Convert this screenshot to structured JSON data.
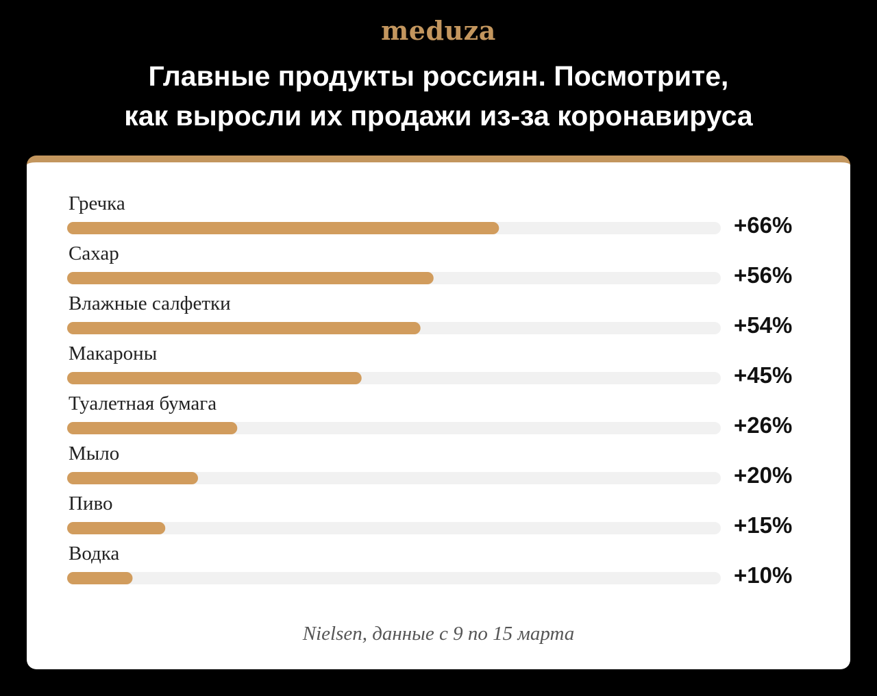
{
  "logo": {
    "text": "meduza",
    "color": "#c3965e"
  },
  "chart_data": {
    "type": "bar",
    "orientation": "horizontal",
    "title": "Главные продукты россиян. Посмотрите, как выросли их продажи из-за коронавируса",
    "title_lines": [
      "Главные продукты россиян. Посмотрите,",
      "как выросли их продажи из-за коронавируса"
    ],
    "categories": [
      "Гречка",
      "Сахар",
      "Влажные салфетки",
      "Макароны",
      "Туалетная бумага",
      "Мыло",
      "Пиво",
      "Водка"
    ],
    "values": [
      66,
      56,
      54,
      45,
      26,
      20,
      15,
      10
    ],
    "value_labels": [
      "+66%",
      "+56%",
      "+54%",
      "+45%",
      "+26%",
      "+20%",
      "+15%",
      "+10%"
    ],
    "unit": "%",
    "xlim": [
      0,
      100
    ],
    "grid": false,
    "legend": "none",
    "source": "Nielsen, данные с 9 по 15 марта",
    "colors": {
      "bar": "#d19c5d",
      "track": "#f1f1f1",
      "accent": "#c3965e"
    }
  }
}
